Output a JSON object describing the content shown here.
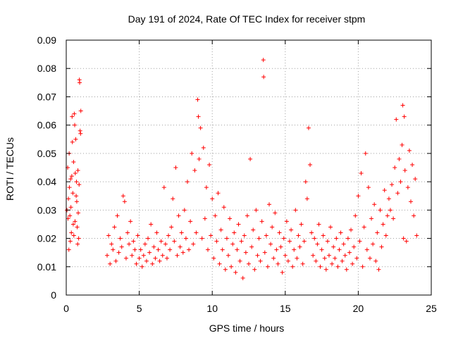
{
  "chart_data": {
    "type": "scatter",
    "title": "Day 191 of 2024, Rate Of TEC Index for receiver stpm",
    "xlabel": "GPS time / hours",
    "ylabel": "ROTI / TECUs",
    "xlim": [
      0,
      25
    ],
    "ylim": [
      0,
      0.09
    ],
    "xticks": [
      0,
      5,
      10,
      15,
      20,
      25
    ],
    "xtick_labels": [
      "0",
      "5",
      "10",
      "15",
      "20",
      "25"
    ],
    "yticks": [
      0,
      0.01,
      0.02,
      0.03,
      0.04,
      0.05,
      0.06,
      0.07,
      0.08,
      0.09
    ],
    "ytick_labels": [
      "0",
      "0.01",
      "0.02",
      "0.03",
      "0.04",
      "0.05",
      "0.06",
      "0.07",
      "0.08",
      "0.09"
    ],
    "grid": true,
    "marker": "+",
    "color": "#ff0000",
    "series": [
      {
        "name": "ROTI",
        "points": [
          [
            0.05,
            0.03
          ],
          [
            0.1,
            0.045
          ],
          [
            0.15,
            0.034
          ],
          [
            0.2,
            0.05
          ],
          [
            0.25,
            0.028
          ],
          [
            0.3,
            0.041
          ],
          [
            0.35,
            0.022
          ],
          [
            0.4,
            0.063
          ],
          [
            0.45,
            0.036
          ],
          [
            0.5,
            0.047
          ],
          [
            0.55,
            0.064
          ],
          [
            0.6,
            0.026
          ],
          [
            0.65,
            0.055
          ],
          [
            0.7,
            0.04
          ],
          [
            0.75,
            0.024
          ],
          [
            0.8,
            0.044
          ],
          [
            0.85,
            0.02
          ],
          [
            0.9,
            0.076
          ],
          [
            0.95,
            0.058
          ],
          [
            1.0,
            0.065
          ],
          [
            0.12,
            0.027
          ],
          [
            0.22,
            0.038
          ],
          [
            0.32,
            0.031
          ],
          [
            0.42,
            0.054
          ],
          [
            0.52,
            0.021
          ],
          [
            0.62,
            0.043
          ],
          [
            0.72,
            0.033
          ],
          [
            0.82,
            0.029
          ],
          [
            0.92,
            0.075
          ],
          [
            0.18,
            0.016
          ],
          [
            0.28,
            0.019
          ],
          [
            0.38,
            0.042
          ],
          [
            0.48,
            0.025
          ],
          [
            0.58,
            0.06
          ],
          [
            0.68,
            0.035
          ],
          [
            0.78,
            0.018
          ],
          [
            0.88,
            0.039
          ],
          [
            0.98,
            0.057
          ],
          [
            2.8,
            0.014
          ],
          [
            2.9,
            0.021
          ],
          [
            3.0,
            0.011
          ],
          [
            3.1,
            0.018
          ],
          [
            3.2,
            0.016
          ],
          [
            3.3,
            0.024
          ],
          [
            3.4,
            0.012
          ],
          [
            3.5,
            0.028
          ],
          [
            3.6,
            0.015
          ],
          [
            3.7,
            0.02
          ],
          [
            3.8,
            0.017
          ],
          [
            3.9,
            0.035
          ],
          [
            4.0,
            0.033
          ],
          [
            4.1,
            0.013
          ],
          [
            4.2,
            0.022
          ],
          [
            4.3,
            0.018
          ],
          [
            4.4,
            0.026
          ],
          [
            4.5,
            0.014
          ],
          [
            4.6,
            0.019
          ],
          [
            4.7,
            0.016
          ],
          [
            4.8,
            0.011
          ],
          [
            4.9,
            0.021
          ],
          [
            5.0,
            0.013
          ],
          [
            5.1,
            0.016
          ],
          [
            5.2,
            0.01
          ],
          [
            5.3,
            0.014
          ],
          [
            5.4,
            0.018
          ],
          [
            5.5,
            0.012
          ],
          [
            5.6,
            0.02
          ],
          [
            5.7,
            0.015
          ],
          [
            5.8,
            0.025
          ],
          [
            5.9,
            0.011
          ],
          [
            6.0,
            0.017
          ],
          [
            6.1,
            0.013
          ],
          [
            6.2,
            0.022
          ],
          [
            6.3,
            0.016
          ],
          [
            6.4,
            0.012
          ],
          [
            6.5,
            0.019
          ],
          [
            6.6,
            0.014
          ],
          [
            6.7,
            0.038
          ],
          [
            6.8,
            0.018
          ],
          [
            6.9,
            0.013
          ],
          [
            7.0,
            0.021
          ],
          [
            7.1,
            0.016
          ],
          [
            7.2,
            0.024
          ],
          [
            7.3,
            0.034
          ],
          [
            7.4,
            0.019
          ],
          [
            7.5,
            0.045
          ],
          [
            7.6,
            0.014
          ],
          [
            7.7,
            0.028
          ],
          [
            7.8,
            0.017
          ],
          [
            7.9,
            0.022
          ],
          [
            8.0,
            0.015
          ],
          [
            8.1,
            0.03
          ],
          [
            8.2,
            0.02
          ],
          [
            8.3,
            0.04
          ],
          [
            8.4,
            0.016
          ],
          [
            8.5,
            0.026
          ],
          [
            8.6,
            0.05
          ],
          [
            8.7,
            0.018
          ],
          [
            8.8,
            0.044
          ],
          [
            8.9,
            0.022
          ],
          [
            9.0,
            0.069
          ],
          [
            9.05,
            0.063
          ],
          [
            9.1,
            0.048
          ],
          [
            9.2,
            0.059
          ],
          [
            9.3,
            0.02
          ],
          [
            9.4,
            0.052
          ],
          [
            9.5,
            0.027
          ],
          [
            9.6,
            0.038
          ],
          [
            9.7,
            0.016
          ],
          [
            9.8,
            0.046
          ],
          [
            9.9,
            0.021
          ],
          [
            10.0,
            0.034
          ],
          [
            10.1,
            0.013
          ],
          [
            10.2,
            0.028
          ],
          [
            10.3,
            0.019
          ],
          [
            10.4,
            0.036
          ],
          [
            10.5,
            0.011
          ],
          [
            10.6,
            0.023
          ],
          [
            10.7,
            0.016
          ],
          [
            10.8,
            0.031
          ],
          [
            10.9,
            0.009
          ],
          [
            11.0,
            0.02
          ],
          [
            11.1,
            0.014
          ],
          [
            11.2,
            0.027
          ],
          [
            11.3,
            0.01
          ],
          [
            11.4,
            0.018
          ],
          [
            11.5,
            0.022
          ],
          [
            11.6,
            0.008
          ],
          [
            11.7,
            0.016
          ],
          [
            11.8,
            0.025
          ],
          [
            11.9,
            0.012
          ],
          [
            12.0,
            0.019
          ],
          [
            12.1,
            0.006
          ],
          [
            12.2,
            0.021
          ],
          [
            12.3,
            0.015
          ],
          [
            12.4,
            0.028
          ],
          [
            12.5,
            0.011
          ],
          [
            12.6,
            0.048
          ],
          [
            12.7,
            0.017
          ],
          [
            12.8,
            0.023
          ],
          [
            12.9,
            0.009
          ],
          [
            13.0,
            0.03
          ],
          [
            13.1,
            0.014
          ],
          [
            13.2,
            0.02
          ],
          [
            13.3,
            0.012
          ],
          [
            13.4,
            0.026
          ],
          [
            13.5,
            0.083
          ],
          [
            13.52,
            0.077
          ],
          [
            13.6,
            0.015
          ],
          [
            13.7,
            0.021
          ],
          [
            13.8,
            0.01
          ],
          [
            13.9,
            0.032
          ],
          [
            14.0,
            0.018
          ],
          [
            14.1,
            0.024
          ],
          [
            14.2,
            0.013
          ],
          [
            14.3,
            0.029
          ],
          [
            14.4,
            0.016
          ],
          [
            14.5,
            0.011
          ],
          [
            14.6,
            0.022
          ],
          [
            14.7,
            0.017
          ],
          [
            14.8,
            0.008
          ],
          [
            14.9,
            0.02
          ],
          [
            15.0,
            0.014
          ],
          [
            15.1,
            0.026
          ],
          [
            15.2,
            0.012
          ],
          [
            15.3,
            0.019
          ],
          [
            15.4,
            0.023
          ],
          [
            15.5,
            0.01
          ],
          [
            15.6,
            0.016
          ],
          [
            15.7,
            0.03
          ],
          [
            15.8,
            0.013
          ],
          [
            15.9,
            0.021
          ],
          [
            16.0,
            0.017
          ],
          [
            16.1,
            0.025
          ],
          [
            16.2,
            0.011
          ],
          [
            16.3,
            0.019
          ],
          [
            16.4,
            0.04
          ],
          [
            16.5,
            0.034
          ],
          [
            16.6,
            0.059
          ],
          [
            16.7,
            0.046
          ],
          [
            16.8,
            0.022
          ],
          [
            16.9,
            0.014
          ],
          [
            17.0,
            0.02
          ],
          [
            17.1,
            0.012
          ],
          [
            17.2,
            0.018
          ],
          [
            17.3,
            0.025
          ],
          [
            17.4,
            0.01
          ],
          [
            17.5,
            0.016
          ],
          [
            17.6,
            0.021
          ],
          [
            17.7,
            0.013
          ],
          [
            17.8,
            0.009
          ],
          [
            17.9,
            0.019
          ],
          [
            18.0,
            0.014
          ],
          [
            18.1,
            0.024
          ],
          [
            18.2,
            0.011
          ],
          [
            18.3,
            0.017
          ],
          [
            18.4,
            0.013
          ],
          [
            18.5,
            0.02
          ],
          [
            18.6,
            0.01
          ],
          [
            18.7,
            0.016
          ],
          [
            18.8,
            0.022
          ],
          [
            18.9,
            0.012
          ],
          [
            19.0,
            0.018
          ],
          [
            19.1,
            0.014
          ],
          [
            19.2,
            0.009
          ],
          [
            19.3,
            0.02
          ],
          [
            19.4,
            0.015
          ],
          [
            19.5,
            0.023
          ],
          [
            19.6,
            0.011
          ],
          [
            19.7,
            0.017
          ],
          [
            19.8,
            0.028
          ],
          [
            19.9,
            0.013
          ],
          [
            20.0,
            0.035
          ],
          [
            20.1,
            0.019
          ],
          [
            20.2,
            0.043
          ],
          [
            20.3,
            0.01
          ],
          [
            20.4,
            0.024
          ],
          [
            20.5,
            0.05
          ],
          [
            20.6,
            0.016
          ],
          [
            20.7,
            0.038
          ],
          [
            20.8,
            0.013
          ],
          [
            20.9,
            0.027
          ],
          [
            21.0,
            0.018
          ],
          [
            21.1,
            0.032
          ],
          [
            21.2,
            0.012
          ],
          [
            21.3,
            0.022
          ],
          [
            21.4,
            0.009
          ],
          [
            21.5,
            0.03
          ],
          [
            21.6,
            0.017
          ],
          [
            21.7,
            0.025
          ],
          [
            21.8,
            0.037
          ],
          [
            21.9,
            0.021
          ],
          [
            22.0,
            0.028
          ],
          [
            22.1,
            0.034
          ],
          [
            22.2,
            0.03
          ],
          [
            22.3,
            0.039
          ],
          [
            22.4,
            0.027
          ],
          [
            22.5,
            0.045
          ],
          [
            22.6,
            0.062
          ],
          [
            22.7,
            0.036
          ],
          [
            22.8,
            0.048
          ],
          [
            22.9,
            0.04
          ],
          [
            23.0,
            0.053
          ],
          [
            23.05,
            0.067
          ],
          [
            23.1,
            0.02
          ],
          [
            23.15,
            0.063
          ],
          [
            23.2,
            0.044
          ],
          [
            23.3,
            0.019
          ],
          [
            23.4,
            0.038
          ],
          [
            23.5,
            0.051
          ],
          [
            23.6,
            0.033
          ],
          [
            23.7,
            0.046
          ],
          [
            23.8,
            0.028
          ],
          [
            23.9,
            0.041
          ],
          [
            24.0,
            0.021
          ]
        ]
      }
    ]
  }
}
